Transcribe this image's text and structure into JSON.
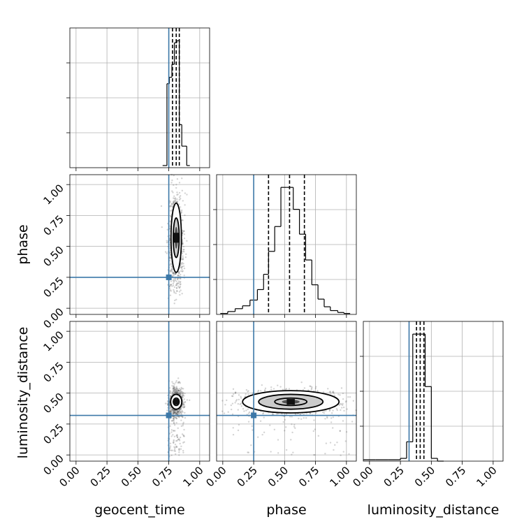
{
  "colors": {
    "truth": "#3c78a8",
    "hist": "#000000",
    "quantile": "#000000",
    "grid": "#b0b0b0",
    "scatter": "#555555"
  },
  "chart_data": {
    "type": "scatter",
    "parameters": [
      "geocent_time",
      "phase",
      "luminosity_distance"
    ],
    "axis_range": [
      -0.05,
      1.08
    ],
    "ticks": [
      0.0,
      0.25,
      0.5,
      0.75,
      1.0
    ],
    "tick_labels": [
      "0.00",
      "0.25",
      "0.50",
      "0.75",
      "1.00"
    ],
    "grid": true,
    "truths": {
      "geocent_time": 0.75,
      "phase": 0.25,
      "luminosity_distance": 0.32
    },
    "histograms": [
      {
        "parameter": "geocent_time",
        "bin_edges": [
          0.7,
          0.735,
          0.755,
          0.775,
          0.795,
          0.815,
          0.835,
          0.855,
          0.875,
          0.895,
          0.92
        ],
        "counts": [
          1,
          39,
          42,
          48,
          58,
          59,
          20,
          10,
          10,
          1
        ],
        "quantiles": [
          0.78,
          0.81,
          0.835
        ]
      },
      {
        "parameter": "phase",
        "bin_edges": [
          -0.02,
          0.04,
          0.1,
          0.16,
          0.22,
          0.28,
          0.33,
          0.37,
          0.42,
          0.47,
          0.52,
          0.57,
          0.62,
          0.67,
          0.72,
          0.77,
          0.82,
          0.87,
          0.93,
          0.98,
          1.03
        ],
        "counts": [
          1,
          3,
          6,
          9,
          15,
          26,
          42,
          66,
          92,
          133,
          133,
          110,
          84,
          57,
          31,
          16,
          8,
          4,
          2,
          1
        ],
        "quantiles": [
          0.37,
          0.54,
          0.66
        ]
      },
      {
        "parameter": "luminosity_distance",
        "bin_edges": [
          -0.05,
          0.05,
          0.15,
          0.25,
          0.3,
          0.35,
          0.375,
          0.4,
          0.425,
          0.45,
          0.475,
          0.5,
          0.55,
          0.6
        ],
        "counts": [
          1,
          1,
          1,
          2,
          14,
          92,
          92,
          92,
          92,
          54,
          54,
          2,
          0
        ],
        "quantiles": [
          0.38,
          0.41,
          0.44
        ]
      }
    ],
    "joint": [
      {
        "x": "geocent_time",
        "y": "phase",
        "mean": [
          0.81,
          0.57
        ],
        "std": [
          0.022,
          0.14
        ],
        "contours": [
          [
            0.024,
            0.16
          ],
          [
            0.042,
            0.28
          ]
        ]
      },
      {
        "x": "geocent_time",
        "y": "luminosity_distance",
        "mean": [
          0.81,
          0.43
        ],
        "std": [
          0.022,
          0.045
        ],
        "contours": [
          [
            0.024,
            0.03
          ],
          [
            0.045,
            0.06
          ]
        ]
      },
      {
        "x": "phase",
        "y": "luminosity_distance",
        "mean": [
          0.55,
          0.43
        ],
        "std": [
          0.16,
          0.04
        ],
        "contours": [
          [
            0.13,
            0.03
          ],
          [
            0.26,
            0.06
          ],
          [
            0.39,
            0.09
          ]
        ]
      }
    ]
  }
}
